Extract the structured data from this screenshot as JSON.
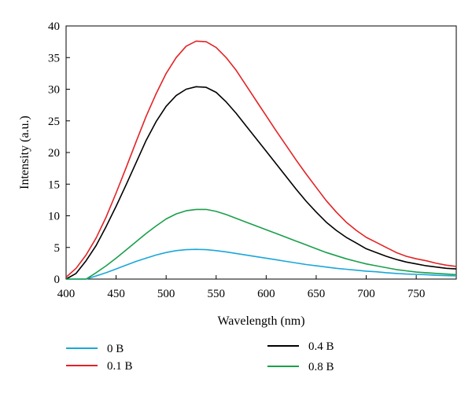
{
  "chart_data": {
    "type": "line",
    "title": "",
    "xlabel": "Wavelength (nm)",
    "ylabel": "Intensity (a.u.)",
    "xlim": [
      400,
      790
    ],
    "ylim": [
      0,
      40
    ],
    "x_ticks": [
      400,
      450,
      500,
      550,
      600,
      650,
      700,
      750
    ],
    "y_ticks": [
      0,
      5,
      10,
      15,
      20,
      25,
      30,
      35,
      40
    ],
    "grid": false,
    "legend_position": "bottom",
    "x": [
      400,
      410,
      420,
      430,
      440,
      450,
      460,
      470,
      480,
      490,
      500,
      510,
      520,
      530,
      540,
      550,
      560,
      570,
      580,
      590,
      600,
      610,
      620,
      630,
      640,
      650,
      660,
      670,
      680,
      690,
      700,
      710,
      720,
      730,
      740,
      750,
      760,
      770,
      780,
      790
    ],
    "series": [
      {
        "name": "0 B",
        "color": "#1aa7d9",
        "values": [
          0,
          0,
          0,
          0.5,
          1.0,
          1.6,
          2.2,
          2.8,
          3.3,
          3.8,
          4.2,
          4.5,
          4.65,
          4.7,
          4.65,
          4.5,
          4.3,
          4.05,
          3.8,
          3.55,
          3.3,
          3.05,
          2.8,
          2.55,
          2.3,
          2.1,
          1.9,
          1.7,
          1.55,
          1.4,
          1.25,
          1.15,
          1.0,
          0.9,
          0.8,
          0.75,
          0.7,
          0.6,
          0.55,
          0.5
        ]
      },
      {
        "name": "0.1 B",
        "color": "#e32326",
        "values": [
          0.3,
          1.7,
          3.8,
          6.5,
          9.8,
          13.6,
          17.6,
          21.7,
          25.7,
          29.3,
          32.5,
          35.0,
          36.8,
          37.6,
          37.5,
          36.6,
          35.0,
          33.0,
          30.6,
          28.2,
          25.8,
          23.4,
          21.1,
          18.8,
          16.6,
          14.5,
          12.4,
          10.6,
          9.0,
          7.7,
          6.6,
          5.8,
          5.0,
          4.2,
          3.6,
          3.2,
          2.9,
          2.5,
          2.2,
          2.0
        ]
      },
      {
        "name": "0.4 B",
        "color": "#000000",
        "values": [
          0,
          0.9,
          2.9,
          5.3,
          8.3,
          11.5,
          14.9,
          18.4,
          21.9,
          24.9,
          27.3,
          29.0,
          30.0,
          30.4,
          30.3,
          29.5,
          28.0,
          26.2,
          24.2,
          22.2,
          20.2,
          18.2,
          16.2,
          14.2,
          12.3,
          10.6,
          9.0,
          7.7,
          6.6,
          5.7,
          4.8,
          4.2,
          3.6,
          3.1,
          2.7,
          2.4,
          2.1,
          1.9,
          1.7,
          1.6
        ]
      },
      {
        "name": "0.8 B",
        "color": "#1a9f4b",
        "values": [
          0,
          0,
          0,
          1.0,
          2.1,
          3.3,
          4.6,
          5.9,
          7.2,
          8.4,
          9.5,
          10.3,
          10.8,
          11.0,
          11.0,
          10.7,
          10.2,
          9.6,
          9.0,
          8.4,
          7.8,
          7.2,
          6.6,
          6.0,
          5.4,
          4.8,
          4.2,
          3.7,
          3.2,
          2.8,
          2.4,
          2.1,
          1.8,
          1.5,
          1.3,
          1.1,
          1.0,
          0.9,
          0.8,
          0.7
        ]
      }
    ],
    "legend": [
      {
        "label": "0 B",
        "color": "#1aa7d9"
      },
      {
        "label": "0.4 B",
        "color": "#000000"
      },
      {
        "label": "0.1 B",
        "color": "#e32326"
      },
      {
        "label": "0.8 B",
        "color": "#1a9f4b"
      }
    ]
  }
}
